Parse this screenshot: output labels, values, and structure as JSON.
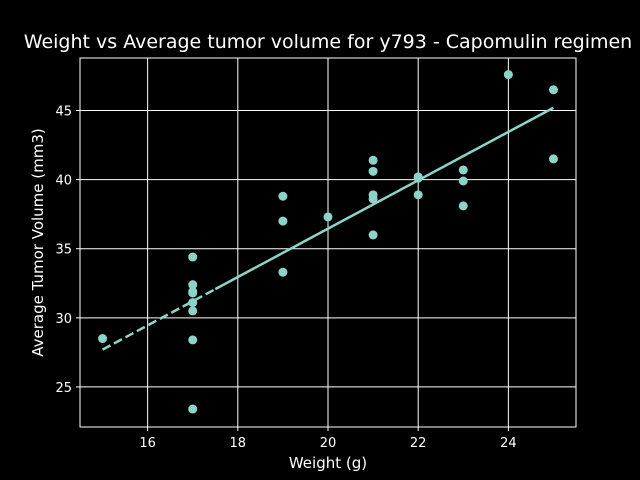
{
  "chart_data": {
    "type": "scatter",
    "title": "Weight vs Average tumor volume for y793 - Capomulin regimen",
    "xlabel": "Weight (g)",
    "ylabel": "Average Tumor Volume (mm3)",
    "xlim": [
      14.5,
      25.5
    ],
    "ylim": [
      22.1,
      48.8
    ],
    "xticks": [
      "16",
      "18",
      "20",
      "22",
      "24"
    ],
    "yticks": [
      "25",
      "30",
      "35",
      "40",
      "45"
    ],
    "grid": true,
    "colors": {
      "background": "#000000",
      "points": "#8dd3c7",
      "regression": "#8dd3c7",
      "grid": "#ffffff",
      "text": "#ffffff"
    },
    "series": [
      {
        "x": [
          15,
          17,
          17,
          17,
          17,
          17,
          17,
          17,
          17,
          19,
          19,
          19,
          20,
          21,
          21,
          21,
          21,
          21,
          22,
          22,
          22,
          23,
          23,
          23,
          24,
          25,
          25
        ],
        "y": [
          28.5,
          34.4,
          32.4,
          31.9,
          31.1,
          30.5,
          28.4,
          23.4,
          31.8,
          38.8,
          37.0,
          33.3,
          37.3,
          41.4,
          40.6,
          38.9,
          38.6,
          36.0,
          40.1,
          40.2,
          38.9,
          40.7,
          39.9,
          38.1,
          47.6,
          46.5,
          41.5
        ]
      }
    ],
    "regression": {
      "x": [
        15,
        25
      ],
      "y": [
        27.7,
        45.2
      ],
      "style": "dashed-solid",
      "dashed_until_x": 17.5
    }
  }
}
